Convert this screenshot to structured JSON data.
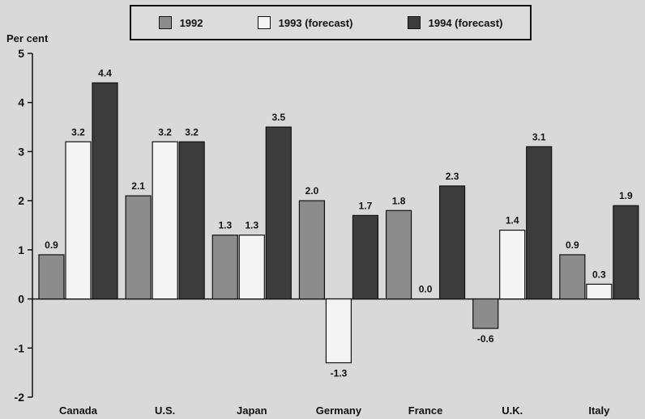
{
  "chart_data": {
    "type": "bar",
    "ylabel": "Per cent",
    "ylim": [
      -2,
      5
    ],
    "yticks": [
      "-2",
      "-1",
      "0",
      "1",
      "2",
      "3",
      "4",
      "5"
    ],
    "categories": [
      "Canada",
      "U.S.",
      "Japan",
      "Germany",
      "France",
      "U.K.",
      "Italy"
    ],
    "series": [
      {
        "name": "1992",
        "color": "#8c8c8c",
        "values": [
          0.9,
          2.1,
          1.3,
          2.0,
          1.8,
          -0.6,
          0.9
        ],
        "labels": [
          "0.9",
          "2.1",
          "1.3",
          "2.0",
          "1.8",
          "-0.6",
          "0.9"
        ]
      },
      {
        "name": "1993 (forecast)",
        "color": "#f4f4f4",
        "values": [
          3.2,
          3.2,
          1.3,
          -1.3,
          0.0,
          1.4,
          0.3
        ],
        "labels": [
          "3.2",
          "3.2",
          "1.3",
          "-1.3",
          "0.0",
          "1.4",
          "0.3"
        ]
      },
      {
        "name": "1994 (forecast)",
        "color": "#3c3c3c",
        "values": [
          4.4,
          3.2,
          3.5,
          1.7,
          2.3,
          3.1,
          1.9
        ],
        "labels": [
          "4.4",
          "3.2",
          "3.5",
          "1.7",
          "2.3",
          "3.1",
          "1.9"
        ]
      }
    ],
    "legend": "top"
  }
}
